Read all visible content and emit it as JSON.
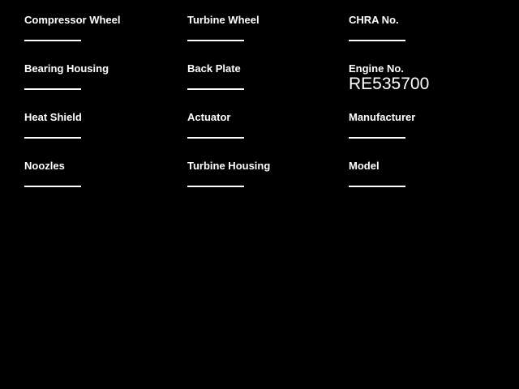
{
  "theme": {
    "background": "#000000",
    "text_color": "#ffffff",
    "line_color": "#ffffff"
  },
  "form": {
    "columns": [
      {
        "fields": [
          {
            "label": "Compressor Wheel",
            "value": ""
          },
          {
            "label": "Bearing Housing",
            "value": ""
          },
          {
            "label": "Heat Shield",
            "value": ""
          },
          {
            "label": "Noozles",
            "value": ""
          }
        ]
      },
      {
        "fields": [
          {
            "label": "Turbine Wheel",
            "value": ""
          },
          {
            "label": "Back Plate",
            "value": ""
          },
          {
            "label": "Actuator",
            "value": ""
          },
          {
            "label": "Turbine Housing",
            "value": ""
          }
        ]
      },
      {
        "fields": [
          {
            "label": "CHRA No.",
            "value": ""
          },
          {
            "label": "Engine No.",
            "value": "RE535700"
          },
          {
            "label": "Manufacturer",
            "value": ""
          },
          {
            "label": "Model",
            "value": ""
          }
        ]
      }
    ]
  }
}
